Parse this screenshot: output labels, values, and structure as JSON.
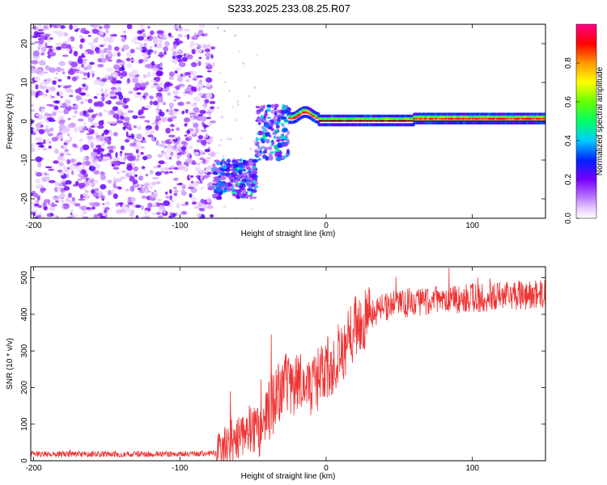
{
  "title": "S233.2025.233.08.25.R07",
  "chart_data": [
    {
      "type": "heatmap",
      "name": "spectrogram",
      "xlabel": "Height of straight line (km)",
      "ylabel": "Frequency (Hz)",
      "xlim": [
        -202,
        150
      ],
      "ylim": [
        -25,
        25
      ],
      "x_ticks": [
        -200,
        -100,
        0,
        100
      ],
      "y_ticks": [
        -20,
        -10,
        0,
        10,
        20
      ],
      "colorbar": {
        "label": "Normalized spectral amplitude",
        "range": [
          0,
          1
        ],
        "ticks": [
          "0.0",
          "0.2",
          "0.4",
          "0.6",
          "0.8"
        ]
      },
      "regions": [
        {
          "description": "scattered low-amplitude noise",
          "x": [
            -202,
            -77
          ],
          "y": [
            -25,
            25
          ]
        },
        {
          "description": "low-frequency blob",
          "x": [
            -77,
            -48
          ],
          "y": [
            -20,
            -10
          ]
        },
        {
          "description": "transition blob",
          "x": [
            -48,
            -25
          ],
          "y": [
            -10,
            4
          ]
        },
        {
          "description": "strong tone near 0 Hz",
          "x": [
            -25,
            150
          ],
          "y": [
            -1,
            3
          ]
        }
      ]
    },
    {
      "type": "line",
      "name": "snr",
      "xlabel": "Height of straight line (km)",
      "ylabel": "SNR (10 * v/v)",
      "xlim": [
        -202,
        150
      ],
      "ylim": [
        0,
        530
      ],
      "x_ticks": [
        -200,
        -100,
        0,
        100
      ],
      "y_ticks": [
        0,
        100,
        200,
        300,
        400,
        500
      ],
      "color": "#ee3333",
      "trend": {
        "x": [
          -202,
          -150,
          -100,
          -75,
          -65,
          -55,
          -45,
          -35,
          -25,
          -15,
          -5,
          5,
          15,
          25,
          40,
          60,
          80,
          100,
          120,
          150
        ],
        "y": [
          18,
          18,
          18,
          20,
          50,
          90,
          80,
          170,
          220,
          200,
          220,
          270,
          330,
          390,
          420,
          435,
          440,
          445,
          450,
          455
        ]
      }
    }
  ]
}
